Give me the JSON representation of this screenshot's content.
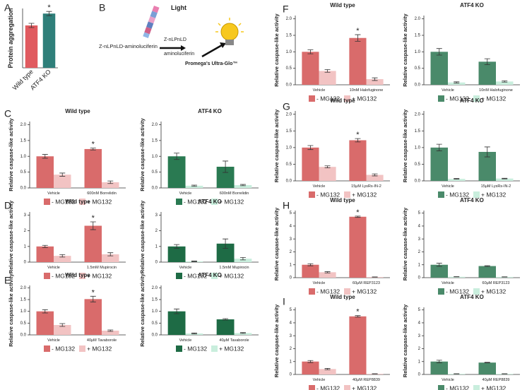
{
  "panel_labels": [
    "A",
    "B",
    "C",
    "D",
    "E",
    "F",
    "G",
    "H",
    "I"
  ],
  "diagram": {
    "substrate": "Z-nLPnLD-aminoluciferin",
    "product_1": "Z-nLPnLD",
    "product_2": "aminoluciferin",
    "output": "Light",
    "enzyme": "Promega's Ultra-Glo™"
  },
  "chart_data": [
    {
      "type": "bar",
      "ylabel": "Protein aggregation",
      "categories": [
        "Wild type",
        "ATF4 KO"
      ],
      "colors": [
        "#e05a5f",
        "#2f7f7a"
      ],
      "series": [
        {
          "values": [
            1.0,
            1.28
          ],
          "errors": [
            0.05,
            0.05
          ]
        }
      ],
      "ylim": [
        0,
        1.4
      ],
      "annotations": [
        {
          "text": "*",
          "x": "ATF4 KO"
        }
      ]
    },
    {
      "type": "bar",
      "title": "Wild type",
      "ylabel": "Relative caspase-like activity",
      "categories": [
        "Vehicle",
        "600nM Borrelidin"
      ],
      "series": [
        {
          "name": "- MG132",
          "color": "#d96b6b",
          "values": [
            1.0,
            1.23
          ],
          "errors": [
            0.06,
            0.03
          ]
        },
        {
          "name": "+ MG132",
          "color": "#f2c3c3",
          "values": [
            0.42,
            0.18
          ],
          "errors": [
            0.05,
            0.04
          ]
        }
      ],
      "ylim": [
        0,
        2.1
      ],
      "yticks": [
        {
          "value": 0,
          "label": "0.0"
        },
        0.5,
        {
          "value": 1,
          "label": "1.0"
        },
        1.5,
        {
          "value": 2,
          "label": "2.0"
        }
      ],
      "annotations": [
        {
          "text": "*",
          "x": "600nM Borrelidin"
        }
      ]
    },
    {
      "type": "bar",
      "title": "ATF4 KO",
      "ylabel": "Relative caspase-like activity",
      "categories": [
        "Vehicle",
        "600nM Borrelidin"
      ],
      "series": [
        {
          "name": "- MG132",
          "color": "#2a7a52",
          "values": [
            1.0,
            0.67
          ],
          "errors": [
            0.1,
            0.18
          ]
        },
        {
          "name": "+ MG132",
          "color": "#c9eedd",
          "values": [
            0.07,
            0.09
          ],
          "errors": [
            0.02,
            0.02
          ]
        }
      ],
      "ylim": [
        0,
        2.1
      ],
      "yticks": [
        {
          "value": 0,
          "label": "0.0"
        },
        0.5,
        {
          "value": 1,
          "label": "1.0"
        },
        1.5,
        {
          "value": 2,
          "label": "2.0"
        }
      ]
    },
    {
      "type": "bar",
      "title": "Wild type",
      "ylabel": "Relative caspase-like activity",
      "categories": [
        "Vehicle",
        "1.5mM Mupirocin"
      ],
      "series": [
        {
          "name": "- MG132",
          "color": "#d96b6b",
          "values": [
            1.0,
            2.32
          ],
          "errors": [
            0.07,
            0.25
          ]
        },
        {
          "name": "+ MG132",
          "color": "#f2c3c3",
          "values": [
            0.4,
            0.5
          ],
          "errors": [
            0.08,
            0.1
          ]
        }
      ],
      "ylim": [
        0,
        3.2
      ],
      "yticks": [
        0,
        1,
        2,
        3
      ],
      "annotations": [
        {
          "text": "*",
          "x": "1.5mM Mupirocin"
        }
      ]
    },
    {
      "type": "bar",
      "title": "ATF4 KO",
      "ylabel": "Relative caspase-like activity",
      "categories": [
        "Vehicle",
        "1.5mM Mupirocin"
      ],
      "series": [
        {
          "name": "- MG132",
          "color": "#1e6b45",
          "values": [
            1.0,
            1.18
          ],
          "errors": [
            0.12,
            0.3
          ]
        },
        {
          "name": "+ MG132",
          "color": "#c9eedd",
          "values": [
            0.05,
            0.22
          ],
          "errors": [
            0.02,
            0.08
          ]
        }
      ],
      "ylim": [
        0,
        3.2
      ],
      "yticks": [
        0,
        1,
        2,
        3
      ]
    },
    {
      "type": "bar",
      "title": "Wild type",
      "ylabel": "Relative caspase-like activity",
      "categories": [
        "Vehicle",
        "40μM Tavaborole"
      ],
      "series": [
        {
          "name": "- MG132",
          "color": "#d96b6b",
          "values": [
            1.0,
            1.52
          ],
          "errors": [
            0.07,
            0.12
          ]
        },
        {
          "name": "+ MG132",
          "color": "#f2c3c3",
          "values": [
            0.42,
            0.18
          ],
          "errors": [
            0.06,
            0.03
          ]
        }
      ],
      "ylim": [
        0,
        2.1
      ],
      "yticks": [
        {
          "value": 0,
          "label": "0.0"
        },
        0.5,
        {
          "value": 1,
          "label": "1.0"
        },
        1.5,
        {
          "value": 2,
          "label": "2.0"
        }
      ],
      "annotations": [
        {
          "text": "*",
          "x": "40μM Tavaborole"
        }
      ]
    },
    {
      "type": "bar",
      "title": "ATF4 KO",
      "ylabel": "Relative caspase-like activity",
      "categories": [
        "Vehicle",
        "40μM Tavaborole"
      ],
      "series": [
        {
          "name": "- MG132",
          "color": "#1e6b45",
          "values": [
            1.0,
            0.66
          ],
          "errors": [
            0.1,
            0.03
          ]
        },
        {
          "name": "+ MG132",
          "color": "#c9eedd",
          "values": [
            0.06,
            0.08
          ],
          "errors": [
            0.02,
            0.02
          ]
        }
      ],
      "ylim": [
        0,
        2.1
      ],
      "yticks": [
        {
          "value": 0,
          "label": "0.0"
        },
        0.5,
        {
          "value": 1,
          "label": "1.0"
        },
        1.5,
        {
          "value": 2,
          "label": "2.0"
        }
      ]
    },
    {
      "type": "bar",
      "title": "Wild type",
      "ylabel": "Relative caspase-like activity",
      "categories": [
        "Vehicle",
        "10nM Halofuginone"
      ],
      "series": [
        {
          "name": "- MG132",
          "color": "#d96b6b",
          "values": [
            1.0,
            1.42
          ],
          "errors": [
            0.06,
            0.1
          ]
        },
        {
          "name": "+ MG132",
          "color": "#f2c3c3",
          "values": [
            0.42,
            0.17
          ],
          "errors": [
            0.04,
            0.04
          ]
        }
      ],
      "ylim": [
        0,
        2.1
      ],
      "yticks": [
        {
          "value": 0,
          "label": "0.0"
        },
        0.5,
        {
          "value": 1,
          "label": "1.0"
        },
        1.5,
        {
          "value": 2,
          "label": "2.0"
        }
      ],
      "annotations": [
        {
          "text": "*",
          "x": "10nM Halofuginone"
        }
      ]
    },
    {
      "type": "bar",
      "title": "ATF4 KO",
      "ylabel": "Relative caspase-like activity",
      "categories": [
        "Vehicle",
        "10nM Halofuginone"
      ],
      "series": [
        {
          "name": "- MG132",
          "color": "#4a8a6a",
          "values": [
            1.0,
            0.7
          ],
          "errors": [
            0.1,
            0.09
          ]
        },
        {
          "name": "+ MG132",
          "color": "#c9eedd",
          "values": [
            0.07,
            0.1
          ],
          "errors": [
            0.02,
            0.02
          ]
        }
      ],
      "ylim": [
        0,
        2.1
      ],
      "yticks": [
        {
          "value": 0,
          "label": "0.0"
        },
        0.5,
        {
          "value": 1,
          "label": "1.0"
        },
        1.5,
        {
          "value": 2,
          "label": "2.0"
        }
      ]
    },
    {
      "type": "bar",
      "title": "Wild type",
      "ylabel": "Relative caspase-like activity",
      "categories": [
        "Vehicle",
        "15μM LysRs-IN-2"
      ],
      "series": [
        {
          "name": "- MG132",
          "color": "#d96b6b",
          "values": [
            1.0,
            1.22
          ],
          "errors": [
            0.06,
            0.05
          ]
        },
        {
          "name": "+ MG132",
          "color": "#f2c3c3",
          "values": [
            0.42,
            0.18
          ],
          "errors": [
            0.03,
            0.03
          ]
        }
      ],
      "ylim": [
        0,
        2.1
      ],
      "yticks": [
        {
          "value": 0,
          "label": "0.0"
        },
        0.5,
        {
          "value": 1,
          "label": "1.0"
        },
        1.5,
        {
          "value": 2,
          "label": "2.0"
        }
      ],
      "annotations": [
        {
          "text": "*",
          "x": "15μM LysRs-IN-2"
        }
      ]
    },
    {
      "type": "bar",
      "title": "ATF4 KO",
      "ylabel": "Relative caspase-like activity",
      "categories": [
        "Vehicle",
        "15μM LysRs-IN-2"
      ],
      "series": [
        {
          "name": "- MG132",
          "color": "#4a8a6a",
          "values": [
            1.0,
            0.87
          ],
          "errors": [
            0.1,
            0.15
          ]
        },
        {
          "name": "+ MG132",
          "color": "#c9eedd",
          "values": [
            0.06,
            0.07
          ],
          "errors": [
            0.01,
            0.01
          ]
        }
      ],
      "ylim": [
        0,
        2.1
      ],
      "yticks": [
        {
          "value": 0,
          "label": "0.0"
        },
        0.5,
        {
          "value": 1,
          "label": "1.0"
        },
        1.5,
        {
          "value": 2,
          "label": "2.0"
        }
      ]
    },
    {
      "type": "bar",
      "title": "Wild type",
      "ylabel": "Relative caspase-like activity",
      "categories": [
        "Vehicle",
        "60μM REP3123"
      ],
      "series": [
        {
          "name": "- MG132",
          "color": "#d96b6b",
          "values": [
            1.0,
            4.72
          ],
          "errors": [
            0.08,
            0.05
          ]
        },
        {
          "name": "+ MG132",
          "color": "#f2c3c3",
          "values": [
            0.42,
            0.05
          ],
          "errors": [
            0.05,
            0.01
          ]
        }
      ],
      "ylim": [
        0,
        5.2
      ],
      "yticks": [
        0,
        1,
        2,
        3,
        4,
        5
      ],
      "annotations": [
        {
          "text": "*",
          "x": "60μM REP3123"
        }
      ]
    },
    {
      "type": "bar",
      "title": "ATF4 KO",
      "ylabel": "Relative caspase-like activity",
      "categories": [
        "Vehicle",
        "60μM REP3123"
      ],
      "series": [
        {
          "name": "- MG132",
          "color": "#4a8a6a",
          "values": [
            1.0,
            0.9
          ],
          "errors": [
            0.12,
            0.03
          ]
        },
        {
          "name": "+ MG132",
          "color": "#c9eedd",
          "values": [
            0.07,
            0.06
          ],
          "errors": [
            0.01,
            0.01
          ]
        }
      ],
      "ylim": [
        0,
        5.2
      ],
      "yticks": [
        0,
        1,
        2,
        3,
        4,
        5
      ]
    },
    {
      "type": "bar",
      "title": "Wild type",
      "ylabel": "Relative caspase-like activity",
      "categories": [
        "Vehicle",
        "40μM REP8839"
      ],
      "series": [
        {
          "name": "- MG132",
          "color": "#d96b6b",
          "values": [
            1.0,
            4.5
          ],
          "errors": [
            0.08,
            0.06
          ]
        },
        {
          "name": "+ MG132",
          "color": "#f2c3c3",
          "values": [
            0.42,
            0.05
          ],
          "errors": [
            0.05,
            0.01
          ]
        }
      ],
      "ylim": [
        0,
        5.2
      ],
      "yticks": [
        0,
        1,
        2,
        3,
        4,
        5
      ],
      "annotations": [
        {
          "text": "*",
          "x": "40μM REP8839"
        }
      ]
    },
    {
      "type": "bar",
      "title": "ATF4 KO",
      "ylabel": "Relative caspase-like activity",
      "categories": [
        "Vehicle",
        "40μM REP8839"
      ],
      "series": [
        {
          "name": "- MG132",
          "color": "#4a8a6a",
          "values": [
            1.0,
            0.92
          ],
          "errors": [
            0.1,
            0.02
          ]
        },
        {
          "name": "+ MG132",
          "color": "#c9eedd",
          "values": [
            0.05,
            0.05
          ],
          "errors": [
            0.01,
            0.01
          ]
        }
      ],
      "ylim": [
        0,
        5.2
      ],
      "yticks": [
        0,
        1,
        2,
        3,
        4,
        5
      ]
    }
  ]
}
